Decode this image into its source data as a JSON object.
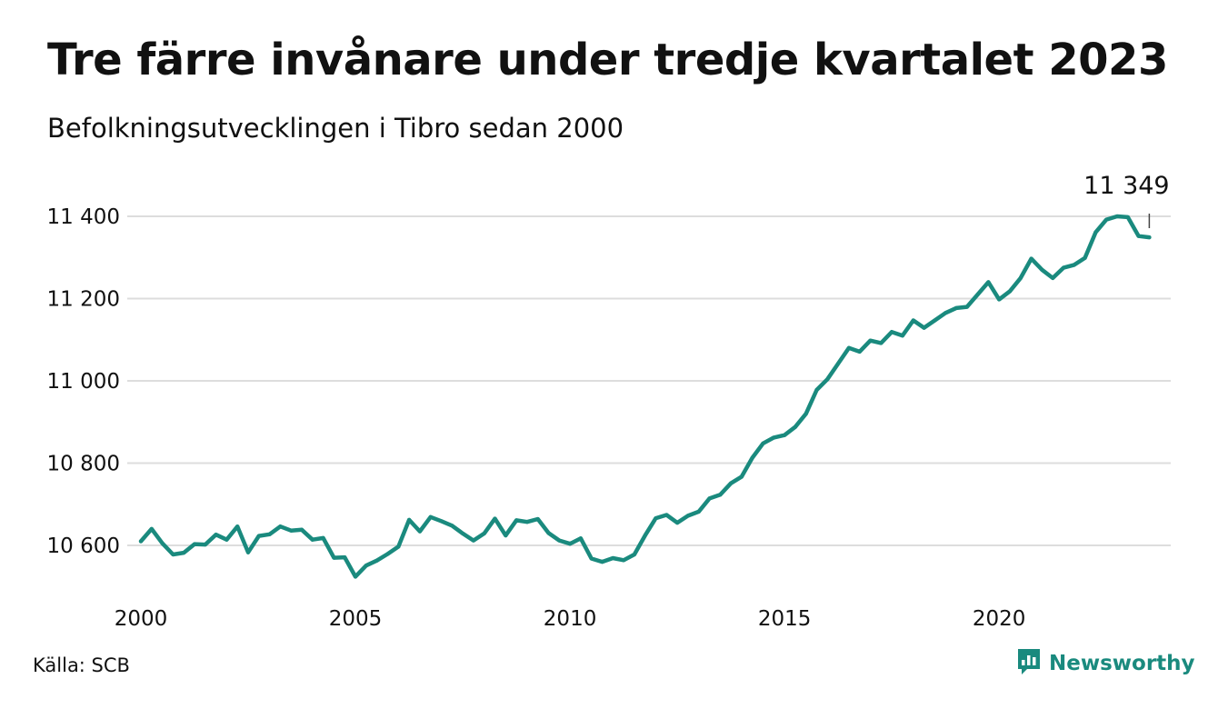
{
  "title": "Tre färre invånare under tredje kvartalet 2023",
  "subtitle": "Befolkningsutvecklingen i Tibro sedan 2000",
  "source": "Källa: SCB",
  "brand": {
    "name": "Newsworthy",
    "color": "#1a8a7e"
  },
  "colors": {
    "line": "#1a8a7e",
    "grid": "#dddddd"
  },
  "chart_data": {
    "type": "line",
    "title": "Tre färre invånare under tredje kvartalet 2023",
    "subtitle": "Befolkningsutvecklingen i Tibro sedan 2000",
    "xlabel": "",
    "ylabel": "",
    "frequency": "quarterly",
    "xlim": [
      2000,
      2024
    ],
    "ylim": [
      10515,
      11420
    ],
    "x_ticks": [
      2000,
      2005,
      2010,
      2015,
      2020
    ],
    "x_tick_labels": [
      "2000",
      "2005",
      "2010",
      "2015",
      "2020"
    ],
    "y_ticks": [
      10600,
      10800,
      11000,
      11200,
      11400
    ],
    "y_tick_labels": [
      "10 600",
      "10 800",
      "11 000",
      "11 200",
      "11 400"
    ],
    "grid": "horizontal",
    "legend": "none",
    "annotation": {
      "label": "11 349",
      "at": "last point"
    },
    "series": [
      {
        "x": [
          "2000 Q1",
          "2000 Q2",
          "2000 Q3",
          "2000 Q4",
          "2001 Q1",
          "2001 Q2",
          "2001 Q3",
          "2001 Q4",
          "2002 Q1",
          "2002 Q2",
          "2002 Q3",
          "2002 Q4",
          "2003 Q1",
          "2003 Q2",
          "2003 Q3",
          "2003 Q4",
          "2004 Q1",
          "2004 Q2",
          "2004 Q3",
          "2004 Q4",
          "2005 Q1",
          "2005 Q2",
          "2005 Q3",
          "2005 Q4",
          "2006 Q1",
          "2006 Q2",
          "2006 Q3",
          "2006 Q4",
          "2007 Q1",
          "2007 Q2",
          "2007 Q3",
          "2007 Q4",
          "2008 Q1",
          "2008 Q2",
          "2008 Q3",
          "2008 Q4",
          "2009 Q1",
          "2009 Q2",
          "2009 Q3",
          "2009 Q4",
          "2010 Q1",
          "2010 Q2",
          "2010 Q3",
          "2010 Q4",
          "2011 Q1",
          "2011 Q2",
          "2011 Q3",
          "2011 Q4",
          "2012 Q1",
          "2012 Q2",
          "2012 Q3",
          "2012 Q4",
          "2013 Q1",
          "2013 Q2",
          "2013 Q3",
          "2013 Q4",
          "2014 Q1",
          "2014 Q2",
          "2014 Q3",
          "2014 Q4",
          "2015 Q1",
          "2015 Q2",
          "2015 Q3",
          "2015 Q4",
          "2016 Q1",
          "2016 Q2",
          "2016 Q3",
          "2016 Q4",
          "2017 Q1",
          "2017 Q2",
          "2017 Q3",
          "2017 Q4",
          "2018 Q1",
          "2018 Q2",
          "2018 Q3",
          "2018 Q4",
          "2019 Q1",
          "2019 Q2",
          "2019 Q3",
          "2019 Q4",
          "2020 Q1",
          "2020 Q2",
          "2020 Q3",
          "2020 Q4",
          "2021 Q1",
          "2021 Q2",
          "2021 Q3",
          "2021 Q4",
          "2022 Q1",
          "2022 Q2",
          "2022 Q3",
          "2022 Q4",
          "2023 Q1",
          "2023 Q2",
          "2023 Q3"
        ],
        "values": [
          10610,
          10640,
          10605,
          10578,
          10582,
          10603,
          10602,
          10626,
          10614,
          10646,
          10583,
          10623,
          10627,
          10646,
          10636,
          10638,
          10614,
          10618,
          10570,
          10571,
          10524,
          10551,
          10563,
          10579,
          10597,
          10662,
          10634,
          10669,
          10659,
          10648,
          10629,
          10612,
          10629,
          10665,
          10624,
          10661,
          10657,
          10664,
          10630,
          10612,
          10604,
          10617,
          10568,
          10560,
          10569,
          10564,
          10578,
          10624,
          10666,
          10674,
          10655,
          10672,
          10682,
          10714,
          10723,
          10751,
          10767,
          10813,
          10848,
          10862,
          10868,
          10888,
          10920,
          10978,
          11004,
          11042,
          11080,
          11071,
          11098,
          11092,
          11119,
          11110,
          11147,
          11129,
          11147,
          11165,
          11177,
          11180,
          11210,
          11240,
          11198,
          11218,
          11250,
          11297,
          11270,
          11250,
          11275,
          11282,
          11299,
          11361,
          11392,
          11400,
          11398,
          11352,
          11349
        ]
      }
    ]
  }
}
